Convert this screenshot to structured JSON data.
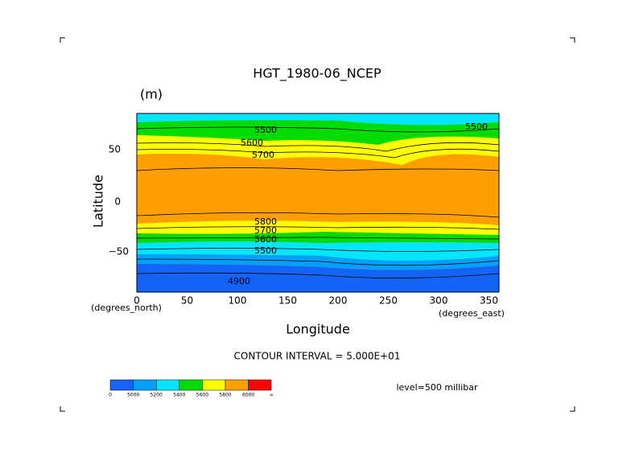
{
  "title": "HGT_1980-06_NCEP",
  "units": "(m)",
  "x_axis": {
    "label": "Longitude",
    "ticks": [
      "0",
      "50",
      "100",
      "150",
      "200",
      "250",
      "300",
      "350"
    ],
    "note": "(degrees_east)"
  },
  "y_axis": {
    "label": "Latitude",
    "ticks": [
      "50",
      "0",
      "−50"
    ],
    "note": "(degrees_north)"
  },
  "contour_labels": [
    "5500",
    "5600",
    "5700",
    "5500",
    "5800",
    "5700",
    "5600",
    "5500",
    "4900"
  ],
  "contour_interval": "CONTOUR INTERVAL = 5.000E+01",
  "level": "level=500 millibar",
  "colorbar": {
    "labels": [
      "0",
      "5000",
      "5200",
      "5400",
      "5600",
      "5800",
      "6000",
      "∞"
    ]
  }
}
